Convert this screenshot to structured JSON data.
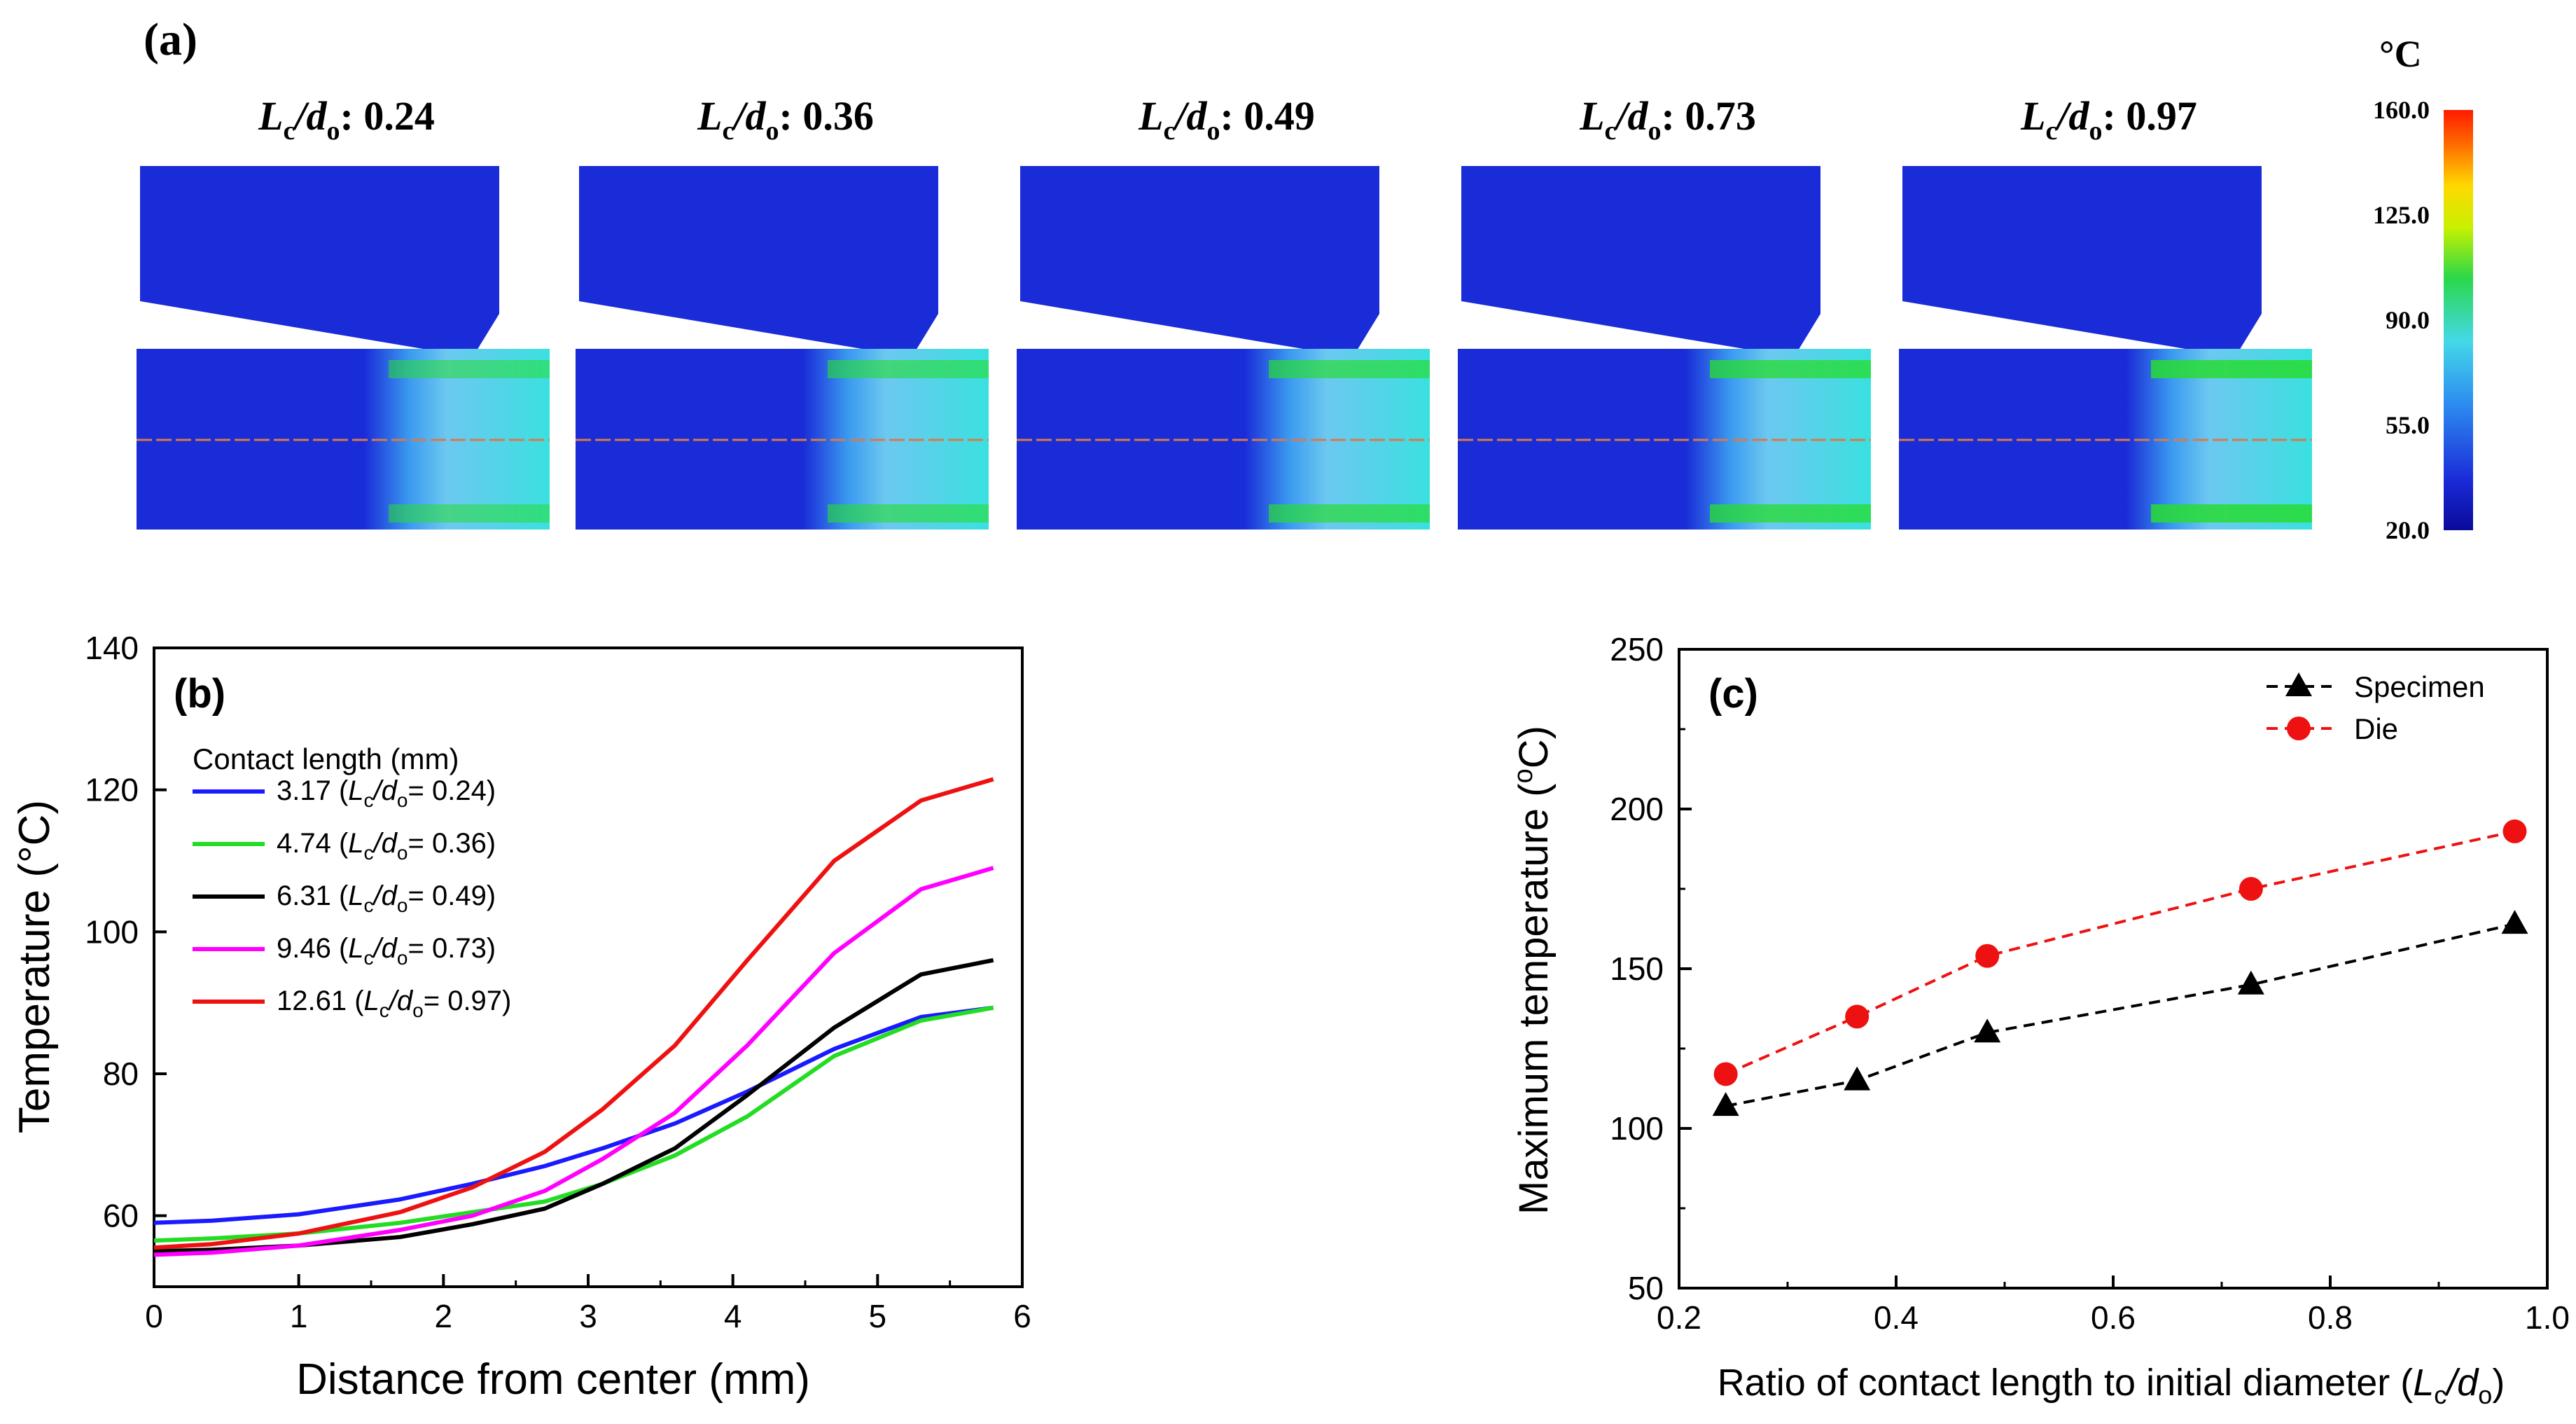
{
  "panel_a": {
    "label": "(a)",
    "unit_label": "°C",
    "colorbar_ticks": [
      "160.0",
      "125.0",
      "90.0",
      "55.0",
      "20.0"
    ],
    "ratio_symbol_main": "L",
    "ratio_symbol_sub1": "c",
    "ratio_slash": "/d",
    "ratio_symbol_sub2": "o",
    "ratio_colon": ":",
    "cases": [
      {
        "value": "0.24",
        "hot": 0.25
      },
      {
        "value": "0.36",
        "hot": 0.4
      },
      {
        "value": "0.49",
        "hot": 0.6
      },
      {
        "value": "0.73",
        "hot": 0.8
      },
      {
        "value": "0.97",
        "hot": 1.0
      }
    ],
    "colors": {
      "cold": "#1a2bd8",
      "mid": "#44c8f0",
      "warm": "#28dc32",
      "hot": "#ff2a00",
      "peak": "#ffe000",
      "axisline": "#d87a4a"
    }
  },
  "chart_data": [
    {
      "type": "line",
      "panel_label": "(b)",
      "title": "",
      "xlabel": "Distance from center (mm)",
      "ylabel": "Temperature (°C)",
      "xlim": [
        0,
        6
      ],
      "ylim": [
        50,
        140
      ],
      "xticks": [
        "0",
        "1",
        "2",
        "3",
        "4",
        "5",
        "6"
      ],
      "yticks": [
        "60",
        "80",
        "100",
        "120",
        "140"
      ],
      "legend_title": "Contact length (mm)",
      "legend_position": "upper-left",
      "series": [
        {
          "name": "3.17",
          "ratio": "0.24",
          "color": "#1a1aff",
          "x": [
            0,
            0.4,
            1.0,
            1.7,
            2.2,
            2.7,
            3.1,
            3.6,
            4.1,
            4.7,
            5.3,
            5.8
          ],
          "y": [
            59,
            59.3,
            60.2,
            62.3,
            64.5,
            67,
            69.5,
            73,
            77.5,
            83.5,
            88,
            89.3
          ]
        },
        {
          "name": "4.74",
          "ratio": "0.36",
          "color": "#22dd22",
          "x": [
            0,
            0.4,
            1.0,
            1.7,
            2.2,
            2.7,
            3.1,
            3.6,
            4.1,
            4.7,
            5.3,
            5.8
          ],
          "y": [
            56.5,
            56.8,
            57.5,
            59,
            60.5,
            62,
            64.5,
            68.5,
            74,
            82.5,
            87.5,
            89.3
          ]
        },
        {
          "name": "6.31",
          "ratio": "0.49",
          "color": "#000000",
          "x": [
            0,
            0.4,
            1.0,
            1.7,
            2.2,
            2.7,
            3.1,
            3.6,
            4.1,
            4.7,
            5.3,
            5.8
          ],
          "y": [
            55,
            55.2,
            55.8,
            57,
            58.8,
            61,
            64.5,
            69.5,
            77,
            86.5,
            94,
            96
          ]
        },
        {
          "name": "9.46",
          "ratio": "0.73",
          "color": "#ff00ff",
          "x": [
            0,
            0.4,
            1.0,
            1.7,
            2.2,
            2.7,
            3.1,
            3.6,
            4.1,
            4.7,
            5.3,
            5.8
          ],
          "y": [
            54.5,
            54.8,
            55.8,
            58,
            60,
            63.5,
            68,
            74.5,
            84,
            97,
            106,
            109
          ]
        },
        {
          "name": "12.61",
          "ratio": "0.97",
          "color": "#ee1111",
          "x": [
            0,
            0.4,
            1.0,
            1.7,
            2.2,
            2.7,
            3.1,
            3.6,
            4.1,
            4.7,
            5.3,
            5.8
          ],
          "y": [
            55.5,
            56,
            57.5,
            60.5,
            64,
            69,
            75,
            84,
            96,
            110,
            118.5,
            121.5
          ]
        }
      ]
    },
    {
      "type": "scatter",
      "panel_label": "(c)",
      "title": "",
      "xlabel": "Ratio of contact length to initial diameter (",
      "ylabel": "Maximum temperature (",
      "xlim": [
        0.2,
        1.0
      ],
      "ylim": [
        50,
        250
      ],
      "xticks": [
        "0.2",
        "0.4",
        "0.6",
        "0.8",
        "1.0"
      ],
      "yticks": [
        "50",
        "100",
        "150",
        "200",
        "250"
      ],
      "legend_position": "top-right",
      "series": [
        {
          "name": "Specimen",
          "color": "#000000",
          "marker": "triangle",
          "x": [
            0.243,
            0.364,
            0.484,
            0.727,
            0.97
          ],
          "y": [
            107,
            115,
            130,
            145,
            164
          ]
        },
        {
          "name": "Die",
          "color": "#ee1111",
          "marker": "circle",
          "x": [
            0.243,
            0.364,
            0.484,
            0.727,
            0.97
          ],
          "y": [
            117,
            135,
            154,
            175,
            193
          ]
        }
      ]
    }
  ]
}
